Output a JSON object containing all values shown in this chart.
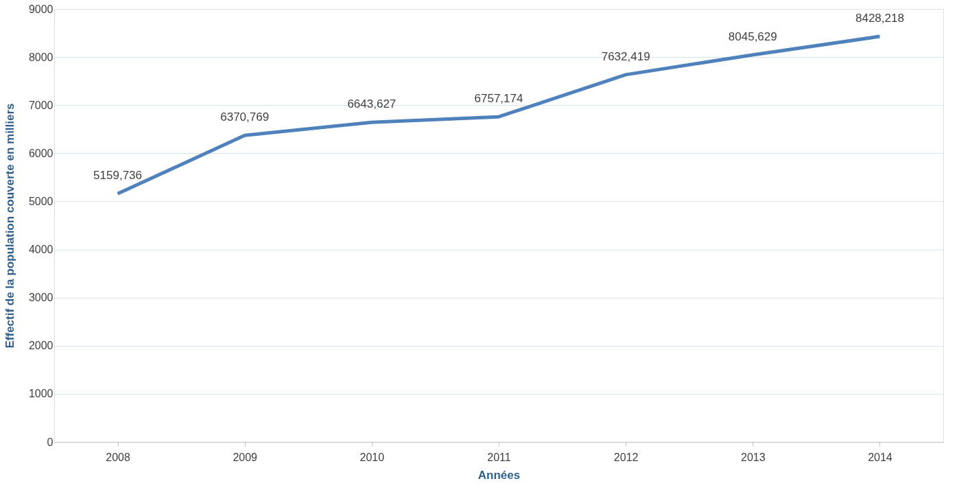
{
  "chart_data": {
    "type": "line",
    "xlabel": "Années",
    "ylabel": "Effectif  de la population couverte en milliers",
    "categories": [
      "2008",
      "2009",
      "2010",
      "2011",
      "2012",
      "2013",
      "2014"
    ],
    "series": [
      {
        "color": "#4f81bd",
        "values": [
          5159.736,
          6370.769,
          6643.627,
          6757.174,
          7632.419,
          8045.629,
          8428.218
        ],
        "value_labels": [
          "5159,736",
          "6370,769",
          "6643,627",
          "6757,174",
          "7632,419",
          "8045,629",
          "8428,218"
        ]
      }
    ],
    "ylim": [
      0,
      9000
    ],
    "yticks": [
      0,
      1000,
      2000,
      3000,
      4000,
      5000,
      6000,
      7000,
      8000,
      9000
    ],
    "grid": "y",
    "marker": "none",
    "line_style": "solid",
    "legend": false
  }
}
